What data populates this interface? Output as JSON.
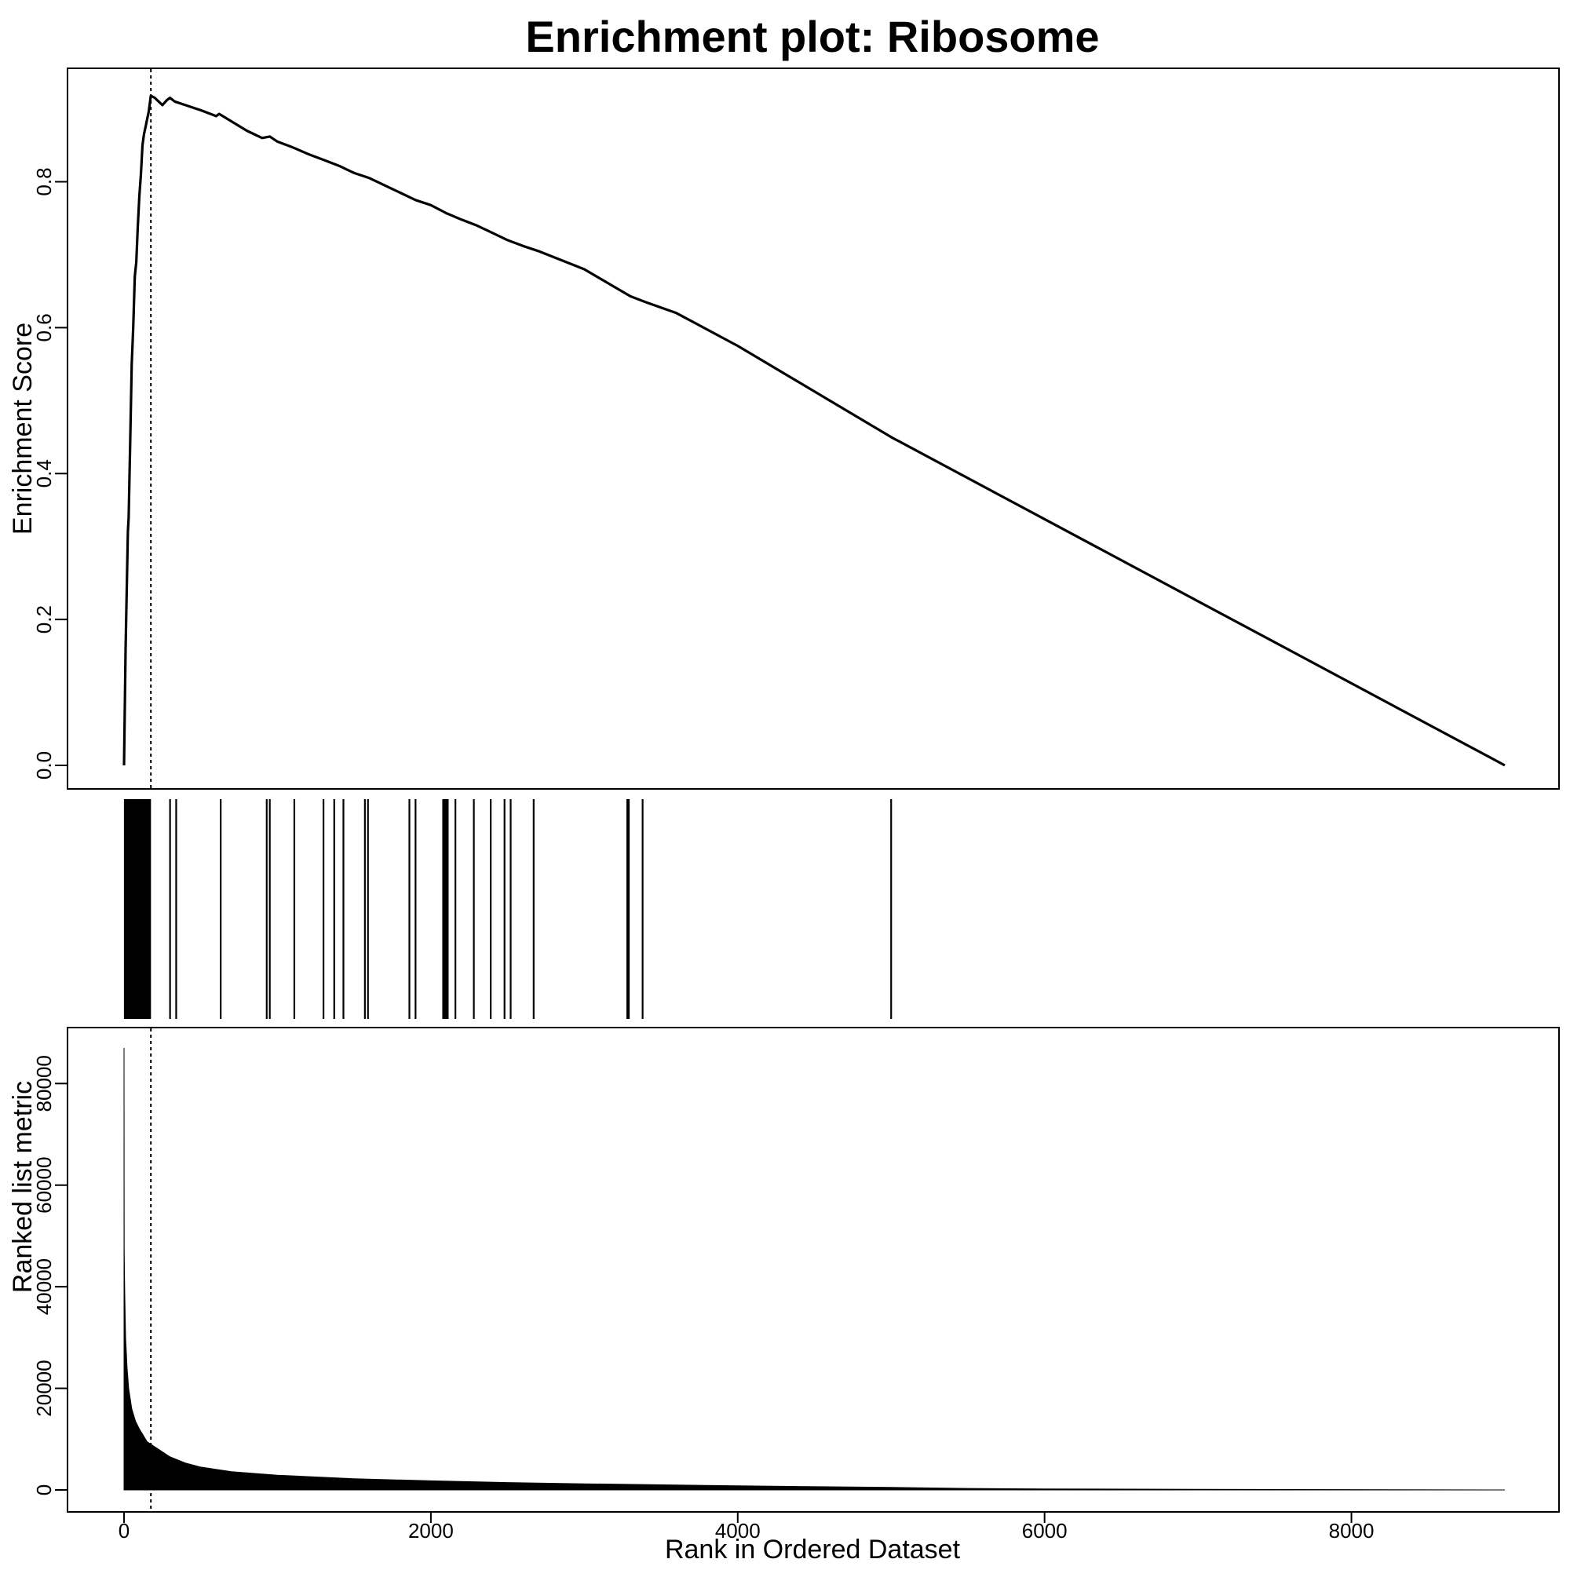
{
  "chart_data": {
    "type": "line",
    "title": "Enrichment plot: Ribosome",
    "xlabel": "Rank in Ordered Dataset",
    "xlim": [
      0,
      9000
    ],
    "x_ticks": [
      0,
      2000,
      4000,
      6000,
      8000
    ],
    "peak_rank": 175,
    "panels": [
      {
        "name": "enrichment-score",
        "type": "line",
        "ylabel": "Enrichment Score",
        "ylim": [
          0.0,
          0.92
        ],
        "y_ticks": [
          "0.0",
          "0.2",
          "0.4",
          "0.6",
          "0.8"
        ],
        "y_tick_values": [
          0.0,
          0.2,
          0.4,
          0.6,
          0.8
        ],
        "series": [
          {
            "name": "Running enrichment score",
            "x": [
              0,
              10,
              15,
              25,
              30,
              40,
              50,
              60,
              70,
              80,
              90,
              100,
              110,
              120,
              130,
              140,
              150,
              160,
              175,
              200,
              250,
              280,
              300,
              330,
              400,
              500,
              600,
              620,
              800,
              900,
              950,
              1000,
              1100,
              1200,
              1300,
              1400,
              1500,
              1600,
              1800,
              1900,
              2000,
              2100,
              2200,
              2300,
              2400,
              2500,
              2600,
              2700,
              3000,
              3300,
              3400,
              3600,
              4000,
              5000,
              9000
            ],
            "y": [
              0.0,
              0.16,
              0.21,
              0.32,
              0.34,
              0.44,
              0.55,
              0.6,
              0.67,
              0.69,
              0.74,
              0.78,
              0.81,
              0.85,
              0.865,
              0.875,
              0.885,
              0.895,
              0.918,
              0.915,
              0.905,
              0.912,
              0.915,
              0.91,
              0.905,
              0.898,
              0.89,
              0.893,
              0.87,
              0.86,
              0.862,
              0.855,
              0.847,
              0.838,
              0.83,
              0.822,
              0.812,
              0.805,
              0.785,
              0.775,
              0.768,
              0.757,
              0.748,
              0.74,
              0.73,
              0.72,
              0.712,
              0.705,
              0.68,
              0.643,
              0.635,
              0.62,
              0.575,
              0.45,
              0.0
            ]
          }
        ]
      },
      {
        "name": "gene-hits",
        "type": "barcode",
        "positions": [
          5,
          12,
          20,
          28,
          35,
          42,
          50,
          58,
          65,
          72,
          80,
          88,
          95,
          102,
          110,
          118,
          125,
          132,
          140,
          148,
          155,
          162,
          170,
          300,
          340,
          630,
          930,
          950,
          1110,
          1300,
          1370,
          1430,
          1570,
          1590,
          1860,
          1900,
          2080,
          2090,
          2100,
          2110,
          2160,
          2280,
          2390,
          2480,
          2520,
          2670,
          3280,
          3290,
          3380,
          5000
        ]
      },
      {
        "name": "ranked-list-metric",
        "type": "area",
        "ylabel": "Ranked list metric",
        "ylim": [
          0,
          87000
        ],
        "y_ticks": [
          "0",
          "20000",
          "40000",
          "60000",
          "80000"
        ],
        "y_tick_values": [
          0,
          20000,
          40000,
          60000,
          80000
        ],
        "series": [
          {
            "name": "Ranked list metric",
            "x": [
              0,
              1,
              3,
              5,
              10,
              20,
              30,
              50,
              75,
              100,
              150,
              200,
              300,
              400,
              500,
              700,
              1000,
              1500,
              2000,
              2500,
              3000,
              4000,
              5000,
              5500,
              6000,
              7000,
              8000,
              9000
            ],
            "y": [
              87000,
              48000,
              42000,
              38000,
              30000,
              24000,
              20000,
              16000,
              13500,
              12000,
              9500,
              8500,
              6500,
              5300,
              4500,
              3600,
              2900,
              2200,
              1800,
              1450,
              1200,
              800,
              500,
              300,
              200,
              120,
              60,
              0
            ]
          }
        ]
      }
    ]
  }
}
